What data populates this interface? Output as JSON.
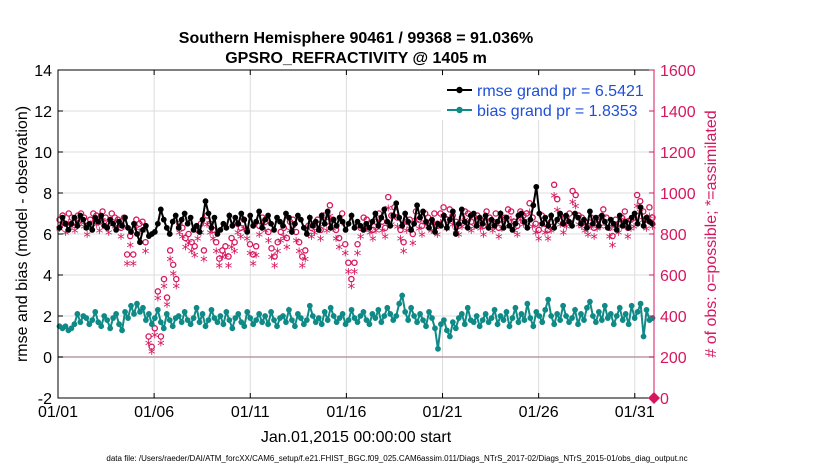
{
  "chart_data": {
    "type": "line",
    "title": "Southern Hemisphere 90461 / 99368 = 91.036%",
    "subtitle": "GPSRO_REFRACTIVITY @ 1405 m",
    "xlabel": "Jan.01,2015 00:00:00 start",
    "ylabel": "rmse and bias (model - observation)",
    "y2label": "# of obs: o=possible; *=assimilated",
    "footer": "data file: /Users/raeder/DAI/ATM_forcXX/CAM6_setup/f.e21.FHIST_BGC.f09_025.CAM6assim.011/Diags_NTrS_2017-02/Diags_NTrS_2015-01/obs_diag_output.nc",
    "xlim": [
      1,
      32
    ],
    "ylim": [
      -2,
      14
    ],
    "y2lim": [
      0,
      1600
    ],
    "xticks": [
      1,
      6,
      11,
      16,
      21,
      26,
      31
    ],
    "xtick_labels": [
      "01/01",
      "01/06",
      "01/11",
      "01/16",
      "01/21",
      "01/26",
      "01/31"
    ],
    "yticks": [
      -2,
      0,
      2,
      4,
      6,
      8,
      10,
      12,
      14
    ],
    "y2ticks": [
      0,
      200,
      400,
      600,
      800,
      1000,
      1200,
      1400,
      1600
    ],
    "zero_line": 0,
    "legend_position": "top-right",
    "series": [
      {
        "name": "rmse grand pr = 6.5421",
        "color": "#000000",
        "marker": "circle",
        "values": [
          6.3,
          6.8,
          6.5,
          6.2,
          6.5,
          6.8,
          6.4,
          6.9,
          6.7,
          6.3,
          6.5,
          6.2,
          6.8,
          6.6,
          6.9,
          6.4,
          6.3,
          6.7,
          6.5,
          6.2,
          6.6,
          6.4,
          6.8,
          6.3,
          6.1,
          6.5,
          6.0,
          5.6,
          6.2,
          6.4,
          5.9,
          6.0,
          6.1,
          6.5,
          7.2,
          6.7,
          6.3,
          6.0,
          6.6,
          6.9,
          6.3,
          6.7,
          7.0,
          6.5,
          6.8,
          6.2,
          6.4,
          6.1,
          6.7,
          7.6,
          7.0,
          6.3,
          6.8,
          6.0,
          6.2,
          6.5,
          6.3,
          6.9,
          6.4,
          6.8,
          6.5,
          7.0,
          6.7,
          6.1,
          6.9,
          6.4,
          6.6,
          7.1,
          6.3,
          6.7,
          6.9,
          6.5,
          6.2,
          6.8,
          6.6,
          6.4,
          7.0,
          6.8,
          6.1,
          6.5,
          6.9,
          6.7,
          6.3,
          6.0,
          6.8,
          6.4,
          6.6,
          6.2,
          6.9,
          6.5,
          7.1,
          6.3,
          6.7,
          6.4,
          6.8,
          6.6,
          6.2,
          6.5,
          6.9,
          6.3,
          6.6,
          6.4,
          6.2,
          6.5,
          6.3,
          6.6,
          7.0,
          6.4,
          6.8,
          7.2,
          6.6,
          6.4,
          6.9,
          7.5,
          6.8,
          6.4,
          7.0,
          6.6,
          6.2,
          6.5,
          7.4,
          6.8,
          7.1,
          6.6,
          6.3,
          6.7,
          6.1,
          6.5,
          6.4,
          6.9,
          6.3,
          6.7,
          7.1,
          6.0,
          6.5,
          7.2,
          6.6,
          6.3,
          6.9,
          7.0,
          6.4,
          6.8,
          6.5,
          6.9,
          6.3,
          6.7,
          6.4,
          6.6,
          7.0,
          6.3,
          6.8,
          6.4,
          6.2,
          6.5,
          6.9,
          7.0,
          6.6,
          6.3,
          6.7,
          7.4,
          8.3,
          7.0,
          6.5,
          6.8,
          6.4,
          6.9,
          6.3,
          6.7,
          7.0,
          6.5,
          6.9,
          6.6,
          6.4,
          7.0,
          6.8,
          6.5,
          6.7,
          6.3,
          7.1,
          6.5,
          6.8,
          6.4,
          6.9,
          6.6,
          6.3,
          6.7,
          6.5,
          6.2,
          6.9,
          6.4,
          6.6,
          6.3,
          6.8,
          7.0,
          6.5,
          7.3,
          6.4,
          6.8,
          6.6,
          6.5
        ]
      },
      {
        "name": "bias grand pr = 1.8353",
        "color": "#0f8a86",
        "marker": "circle",
        "values": [
          1.5,
          1.4,
          1.5,
          1.3,
          1.4,
          1.6,
          2.1,
          1.7,
          2.0,
          1.9,
          1.6,
          1.8,
          2.2,
          1.7,
          1.5,
          2.0,
          1.8,
          1.4,
          1.9,
          2.1,
          1.6,
          1.3,
          2.2,
          1.9,
          2.5,
          2.1,
          2.6,
          2.2,
          2.4,
          1.8,
          2.1,
          1.6,
          1.9,
          2.3,
          1.7,
          1.4,
          2.1,
          1.8,
          1.5,
          1.9,
          2.0,
          1.7,
          2.2,
          1.8,
          1.6,
          1.9,
          2.4,
          1.7,
          2.1,
          1.5,
          1.8,
          2.3,
          1.9,
          1.7,
          2.0,
          1.6,
          2.2,
          1.8,
          1.4,
          1.9,
          2.1,
          1.7,
          1.5,
          2.2,
          1.9,
          1.6,
          1.8,
          2.1,
          1.7,
          2.0,
          1.6,
          2.2,
          1.8,
          1.5,
          1.9,
          2.0,
          1.7,
          2.3,
          1.8,
          1.5,
          2.1,
          1.9,
          1.6,
          1.8,
          2.5,
          2.0,
          1.7,
          1.9,
          1.6,
          2.2,
          1.8,
          2.4,
          2.0,
          1.7,
          1.9,
          2.1,
          1.6,
          1.8,
          2.3,
          1.9,
          1.7,
          2.0,
          2.2,
          1.8,
          1.6,
          2.1,
          1.9,
          2.3,
          1.7,
          2.0,
          2.4,
          2.1,
          1.8,
          2.0,
          2.6,
          3.0,
          2.2,
          1.8,
          2.4,
          2.0,
          1.7,
          2.1,
          1.8,
          1.5,
          2.2,
          1.9,
          1.4,
          0.4,
          1.6,
          1.8,
          1.3,
          1.0,
          1.7,
          1.4,
          1.9,
          2.1,
          1.6,
          2.4,
          1.8,
          1.7,
          2.0,
          1.5,
          1.8,
          2.1,
          1.7,
          1.9,
          2.3,
          1.6,
          2.0,
          1.8,
          2.2,
          1.5,
          1.9,
          2.4,
          1.7,
          2.1,
          1.8,
          2.6,
          1.9,
          1.5,
          2.2,
          2.0,
          1.7,
          2.3,
          2.8,
          2.0,
          1.6,
          2.1,
          1.8,
          2.5,
          2.0,
          1.7,
          1.9,
          2.3,
          1.6,
          2.1,
          1.8,
          2.4,
          2.7,
          2.0,
          1.7,
          2.2,
          1.8,
          2.5,
          1.9,
          2.1,
          1.6,
          2.0,
          2.4,
          1.8,
          2.1,
          1.6,
          2.5,
          1.9,
          2.2,
          2.6,
          1.0,
          2.3,
          1.8,
          1.9
        ]
      }
    ],
    "obs_possible": {
      "name": "o=possible",
      "color": "#d6175f",
      "values": [
        870,
        890,
        850,
        900,
        880,
        860,
        890,
        900,
        880,
        840,
        870,
        900,
        890,
        860,
        910,
        880,
        850,
        900,
        880,
        870,
        830,
        880,
        700,
        790,
        700,
        870,
        850,
        860,
        760,
        300,
        250,
        340,
        520,
        300,
        580,
        490,
        720,
        650,
        580,
        850,
        830,
        780,
        800,
        760,
        740,
        820,
        850,
        720,
        890,
        850,
        820,
        760,
        680,
        720,
        740,
        690,
        780,
        760,
        850,
        830,
        870,
        820,
        750,
        700,
        740,
        840,
        880,
        860,
        810,
        730,
        690,
        760,
        810,
        830,
        780,
        860,
        870,
        810,
        760,
        690,
        720,
        840,
        830,
        850,
        870,
        820,
        890,
        860,
        940,
        870,
        820,
        780,
        900,
        750,
        660,
        580,
        660,
        750,
        830,
        880,
        870,
        850,
        820,
        860,
        900,
        860,
        830,
        980,
        890,
        930,
        880,
        820,
        760,
        860,
        870,
        800,
        910,
        870,
        840,
        900,
        880,
        860,
        900,
        840,
        900,
        930,
        870,
        920,
        890,
        860,
        840,
        880,
        910,
        900,
        860,
        880,
        890,
        870,
        840,
        910,
        880,
        860,
        900,
        830,
        870,
        880,
        920,
        910,
        860,
        840,
        910,
        890,
        900,
        950,
        880,
        850,
        820,
        890,
        850,
        820,
        860,
        1040,
        970,
        890,
        850,
        880,
        900,
        1010,
        990,
        890,
        880,
        860,
        840,
        880,
        830,
        870,
        880,
        920,
        880,
        830,
        790,
        870,
        850,
        880,
        910,
        830,
        870,
        880,
        990,
        960,
        910,
        870,
        930,
        880
      ]
    },
    "obs_assimilated": {
      "name": "*=assimilated",
      "color": "#d6175f",
      "values": [
        820,
        840,
        800,
        850,
        830,
        810,
        840,
        850,
        830,
        790,
        820,
        850,
        840,
        810,
        860,
        830,
        800,
        850,
        830,
        820,
        780,
        830,
        650,
        740,
        650,
        820,
        800,
        810,
        710,
        260,
        220,
        300,
        480,
        260,
        540,
        450,
        670,
        600,
        540,
        800,
        780,
        730,
        750,
        710,
        690,
        770,
        800,
        670,
        840,
        800,
        770,
        710,
        640,
        680,
        690,
        640,
        730,
        710,
        800,
        780,
        820,
        770,
        700,
        650,
        690,
        790,
        830,
        810,
        760,
        680,
        640,
        710,
        760,
        780,
        730,
        810,
        820,
        760,
        710,
        640,
        670,
        790,
        780,
        800,
        820,
        770,
        840,
        810,
        880,
        820,
        770,
        730,
        850,
        700,
        610,
        540,
        610,
        700,
        780,
        830,
        820,
        800,
        770,
        810,
        850,
        810,
        780,
        920,
        840,
        880,
        830,
        770,
        710,
        810,
        820,
        750,
        860,
        820,
        790,
        850,
        830,
        810,
        850,
        790,
        850,
        880,
        820,
        870,
        840,
        810,
        790,
        830,
        860,
        850,
        810,
        830,
        840,
        820,
        790,
        860,
        830,
        810,
        850,
        780,
        820,
        830,
        870,
        860,
        810,
        790,
        860,
        840,
        850,
        900,
        830,
        800,
        770,
        840,
        800,
        770,
        810,
        980,
        910,
        840,
        800,
        830,
        850,
        950,
        930,
        840,
        830,
        810,
        790,
        830,
        780,
        820,
        830,
        870,
        830,
        780,
        740,
        820,
        800,
        830,
        860,
        780,
        820,
        830,
        930,
        900,
        860,
        820,
        880,
        830
      ]
    }
  }
}
